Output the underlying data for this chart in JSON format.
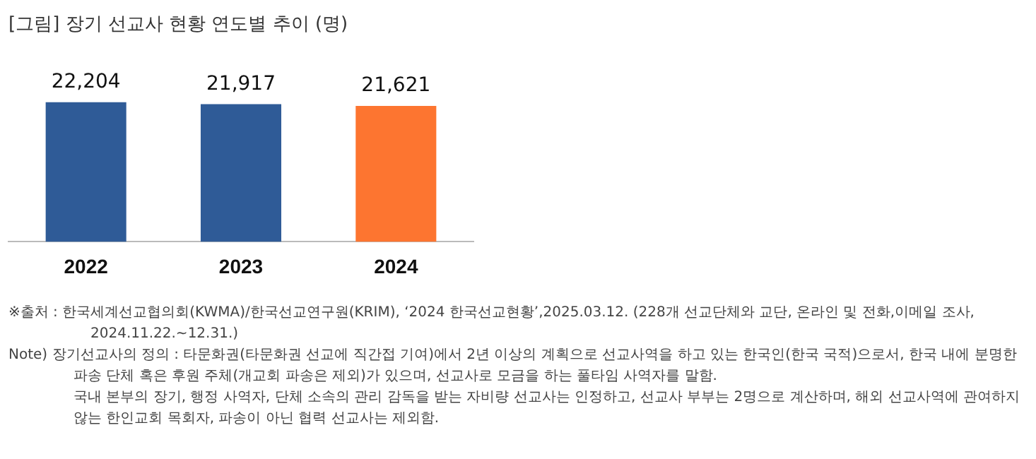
{
  "chart_data": {
    "type": "bar",
    "title": "[그림] 장기 선교사 현황 연도별 추이 (명)",
    "categories": [
      "2022",
      "2023",
      "2024"
    ],
    "values": [
      22204,
      21917,
      21621
    ],
    "colors": [
      "#2f5b97",
      "#2f5b97",
      "#fd7530"
    ],
    "value_labels": [
      "22,204",
      "21,917",
      "21,621"
    ],
    "grid": false,
    "legend": false,
    "annotations": [
      "※출처 : 한국세계선교협의회(KWMA)/한국선교연구원(KRIM), ‘2024 한국선교현황’,2025.03.12. (228개 선교단체와 교단, 온라인 및 전화,이메일 조사, 2024.11.22.~12.31.)",
      "Note) 장기선교사의 정의 : 타문화권(타문화권 선교에 직간접 기여)에서 2년 이상의 계획으로 선교사역을 하고 있는 한국인(한국 국적)으로서, 한국 내에 분명한 파송 단체 혹은 후원 주체(개교회 파송은 제외)가 있으며, 선교사로 모금을 하는 풀타임 사역자를 말함.\n국내 본부의 장기, 행정 사역자, 단체 소속의 관리 감독을 받는 자비량 선교사는 인정하고, 선교사 부부는 2명으로 계산하며, 해외 선교사역에 관여하지 않는 한인교회 목회자, 파송이 아닌 협력 선교사는 제외함."
    ]
  }
}
